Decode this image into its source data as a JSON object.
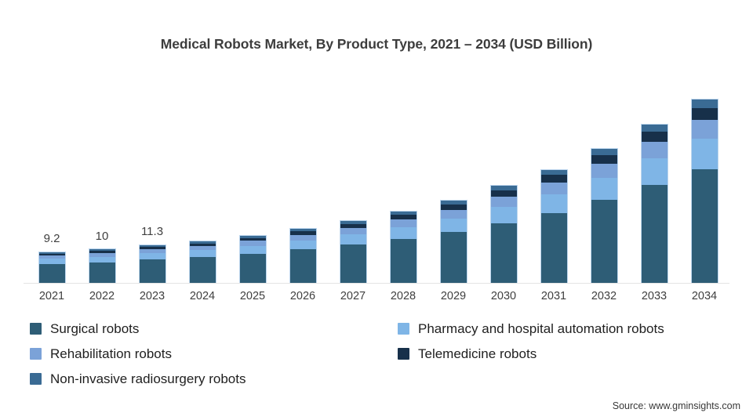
{
  "title": "Medical Robots Market, By Product Type, 2021 – 2034 (USD Billion)",
  "source": "Source: www.gminsights.com",
  "chart_data": {
    "type": "bar",
    "stacked": true,
    "title": "Medical Robots Market, By Product Type, 2021 – 2034 (USD Billion)",
    "unit": "USD Billion",
    "categories": [
      "2021",
      "2022",
      "2023",
      "2024",
      "2025",
      "2026",
      "2027",
      "2028",
      "2029",
      "2030",
      "2031",
      "2032",
      "2033",
      "2034"
    ],
    "series": [
      {
        "name": "Surgical robots",
        "color": "#2e5d76",
        "values": [
          5.7,
          6.2,
          7.0,
          7.75,
          8.75,
          10.05,
          11.5,
          13.25,
          15.3,
          18.0,
          21.0,
          24.9,
          29.45,
          34.1
        ]
      },
      {
        "name": "Pharmacy and hospital automation robots",
        "color": "#7fb5e6",
        "values": [
          1.5,
          1.65,
          1.85,
          2.05,
          2.35,
          2.65,
          3.1,
          3.55,
          4.1,
          4.8,
          5.6,
          6.65,
          7.85,
          9.1
        ]
      },
      {
        "name": "Rehabilitation robots",
        "color": "#7ba2d8",
        "values": [
          1.0,
          1.05,
          1.2,
          1.3,
          1.5,
          1.7,
          1.95,
          2.25,
          2.6,
          3.05,
          3.55,
          4.2,
          5.0,
          5.8
        ]
      },
      {
        "name": "Telemedicine robots",
        "color": "#17304a",
        "values": [
          0.6,
          0.65,
          0.75,
          0.8,
          0.9,
          1.05,
          1.2,
          1.4,
          1.6,
          1.9,
          2.2,
          2.6,
          3.1,
          3.6
        ]
      },
      {
        "name": "Non-invasive radiosurgery robots",
        "color": "#3a6b94",
        "values": [
          0.4,
          0.45,
          0.5,
          0.6,
          0.6,
          0.75,
          0.85,
          0.95,
          1.1,
          1.35,
          1.55,
          1.85,
          2.1,
          2.4
        ]
      }
    ],
    "totals": [
      9.2,
      10,
      11.3,
      12.5,
      14.1,
      16.2,
      18.6,
      21.4,
      24.7,
      29.1,
      33.9,
      40.2,
      47.5,
      55.0
    ],
    "visible_value_labels": {
      "2021": "9.2",
      "2022": "10",
      "2023": "11.3"
    },
    "ylim": [
      0,
      60
    ],
    "grid": false,
    "axis_line_color": "#e4e4e4",
    "legend_position": "bottom"
  },
  "legend_note": {
    "column_1": [
      "Surgical robots",
      "Rehabilitation robots",
      "Non-invasive radiosurgery robots"
    ],
    "column_2": [
      "Pharmacy and hospital automation robots",
      "Telemedicine robots"
    ]
  }
}
